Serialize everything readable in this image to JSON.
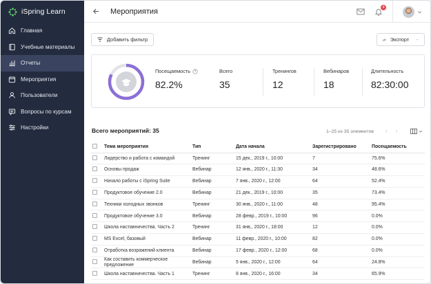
{
  "app": {
    "name": "iSpring Learn"
  },
  "sidebar": {
    "items": [
      {
        "label": "Главная",
        "icon": "home-icon"
      },
      {
        "label": "Учебные материалы",
        "icon": "book-icon"
      },
      {
        "label": "Отчеты",
        "icon": "bar-chart-icon",
        "active": true
      },
      {
        "label": "Мероприятия",
        "icon": "calendar-icon"
      },
      {
        "label": "Пользователи",
        "icon": "users-icon"
      },
      {
        "label": "Вопросы по курсам",
        "icon": "chat-icon"
      },
      {
        "label": "Настройки",
        "icon": "sliders-icon"
      }
    ]
  },
  "header": {
    "title": "Мероприятия",
    "notification_count": "4"
  },
  "toolbar": {
    "add_filter_label": "Добавить фильтр",
    "export_label": "Экспорт"
  },
  "stats": {
    "attendance_label": "Посещаемость",
    "attendance_value": "82.2%",
    "attendance_fraction": 0.822,
    "total_label": "Всего",
    "total_value": "35",
    "trainings_label": "Тренингов",
    "trainings_value": "12",
    "webinars_label": "Вебинаров",
    "webinars_value": "18",
    "duration_label": "Длительность",
    "duration_value": "82:30:00"
  },
  "list": {
    "total_label": "Всего мероприятий: 35",
    "pagination": "1–25 из 35 элементов",
    "columns": [
      "Тема мероприятия",
      "Тип",
      "Дата начала",
      "Зарегистрировано",
      "Посещаемость"
    ],
    "rows": [
      [
        "Лидерство и работа с командой",
        "Тренинг",
        "15 дек., 2019 г., 10:00",
        "7",
        "75.6%"
      ],
      [
        "Основы продаж",
        "Вебинар",
        "12 янв., 2020 г., 11:30",
        "34",
        "48.6%"
      ],
      [
        "Начало работы с iSpring Suite",
        "Вебинар",
        "7 янв., 2020 г., 12:00",
        "64",
        "52.4%"
      ],
      [
        "Продуктовое обучение 2.0",
        "Вебинар",
        "21 дек., 2019 г., 10:00",
        "35",
        "73.4%"
      ],
      [
        "Техники холодных звонков",
        "Тренинг",
        "30 янв., 2020 г., 11:00",
        "48",
        "95.4%"
      ],
      [
        "Продуктовое обучение 3.0",
        "Вебинар",
        "28 февр., 2019 г., 10:00",
        "96",
        "0.0%"
      ],
      [
        "Школа наставничества. Часть 2",
        "Тренинг",
        "31 янв., 2020 г., 18:00",
        "12",
        "0.0%"
      ],
      [
        "MS Excel, базовый",
        "Вебинар",
        "11 февр., 2020 г., 10:00",
        "82",
        "0.0%"
      ],
      [
        "Отработка возражений клиента",
        "Вебинар",
        "17 февр., 2020 г., 12:00",
        "68",
        "0.0%"
      ],
      [
        "Как составить коммерческое предложение",
        "Вебинар",
        "5 янв., 2020 г., 12:00",
        "64",
        "24.8%"
      ],
      [
        "Школа наставничества. Часть 1",
        "Тренинг",
        "8 янв., 2020 г., 16:00",
        "34",
        "65.9%"
      ]
    ]
  },
  "colors": {
    "sidebar_bg": "#232b3e",
    "sidebar_active": "#3a4460",
    "accent": "#8b6fd6",
    "badge": "#e5484d",
    "logo_green": "#5fc36b"
  }
}
